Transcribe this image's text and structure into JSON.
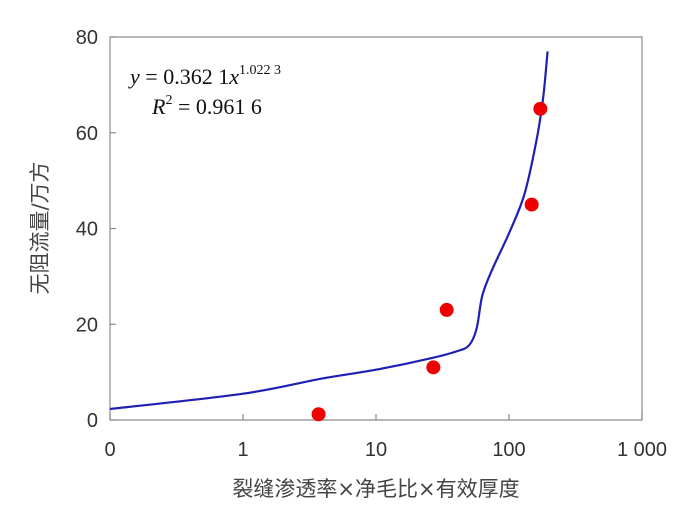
{
  "chart_data": {
    "type": "scatter",
    "x_scale": "log",
    "xlabel": "裂缝渗透率×净毛比×有效厚度",
    "ylabel": "无阻流量/万方",
    "xlim": [
      0.1,
      1000
    ],
    "ylim": [
      0,
      80
    ],
    "x_tick_labels": [
      "0",
      "1",
      "10",
      "100",
      "1 000"
    ],
    "y_ticks": [
      0,
      20,
      40,
      60,
      80
    ],
    "grid": false,
    "points": [
      {
        "x": 3.7,
        "y": 1.2
      },
      {
        "x": 27,
        "y": 11
      },
      {
        "x": 34,
        "y": 23
      },
      {
        "x": 148,
        "y": 45
      },
      {
        "x": 172,
        "y": 65
      }
    ],
    "fit_curve": [
      {
        "x": 0.1,
        "y": 2.3
      },
      {
        "x": 1,
        "y": 5.5
      },
      {
        "x": 4,
        "y": 8.7
      },
      {
        "x": 10,
        "y": 10.5
      },
      {
        "x": 25,
        "y": 12.8
      },
      {
        "x": 40,
        "y": 14.3
      },
      {
        "x": 50,
        "y": 15.6
      },
      {
        "x": 57,
        "y": 19
      },
      {
        "x": 63,
        "y": 26
      },
      {
        "x": 75,
        "y": 31.5
      },
      {
        "x": 100,
        "y": 39
      },
      {
        "x": 130,
        "y": 47
      },
      {
        "x": 160,
        "y": 58
      },
      {
        "x": 180,
        "y": 67
      },
      {
        "x": 195,
        "y": 77
      }
    ],
    "equation": {
      "y_var": "y",
      "eq_sign": " = ",
      "coef": "0.362 1",
      "x_var": "x",
      "exponent": "1.022 3",
      "r_var": "R",
      "r_exp": "2",
      "r_value": " = 0.961 6"
    },
    "series_color": "#1f1fb4",
    "point_color": "#ee0000"
  }
}
